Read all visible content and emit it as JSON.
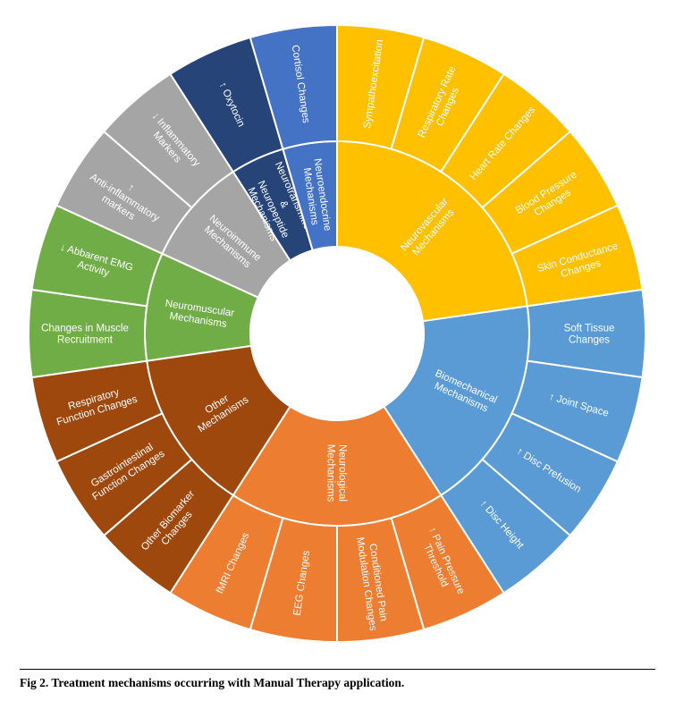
{
  "caption": {
    "label": "Fig 2.",
    "text": "Treatment mechanisms occurring with Manual Therapy application."
  },
  "chart_data": {
    "type": "sunburst",
    "categories": [
      {
        "name": "Neurovascular Mechanisms",
        "color": "#FFC000",
        "children": [
          "Sympathoexcitation",
          "Respiratory Rate Changes",
          "Heart Rate Changes",
          "Blood Pressure Changes",
          "Skin Conductance Changes"
        ]
      },
      {
        "name": "Biomechanical Mechanisms",
        "color": "#5B9BD5",
        "children": [
          "Soft Tissue Changes",
          "↑ Joint Space",
          "↑ Disc Prefusion",
          "↑ Disc Height"
        ]
      },
      {
        "name": "Neurological Mechanisms",
        "color": "#ED7D31",
        "children": [
          "↑ Pain Pressure Threshold",
          "Conditioned Pain Modulation Changes",
          "EEG Changes",
          "fMRI Changes"
        ]
      },
      {
        "name": "Other Mechanisms",
        "color": "#9E480E",
        "children": [
          "Other Biomarker Changes",
          "Gastrointestinal Function Changes",
          "Respiratory Function Changes"
        ]
      },
      {
        "name": "Neuromuscular Mechanisms",
        "color": "#70AD47",
        "children": [
          "Changes in Muscle Recruitment",
          "↓ Abbarent EMG Activity"
        ]
      },
      {
        "name": "Neuroimmune Mechanisms",
        "color": "#A5A5A5",
        "children": [
          "↑ Anti-inflammatory markers",
          "↓ Inflammatory Markers"
        ]
      },
      {
        "name": "Neurotransmitters & Neuropeptide Mechanisms",
        "color": "#264478",
        "children": [
          "↑ Oxytocin"
        ]
      },
      {
        "name": "Neuroendocrine Mechanisms",
        "color": "#4472C4",
        "children": [
          "Cortisol Changes"
        ]
      }
    ]
  }
}
